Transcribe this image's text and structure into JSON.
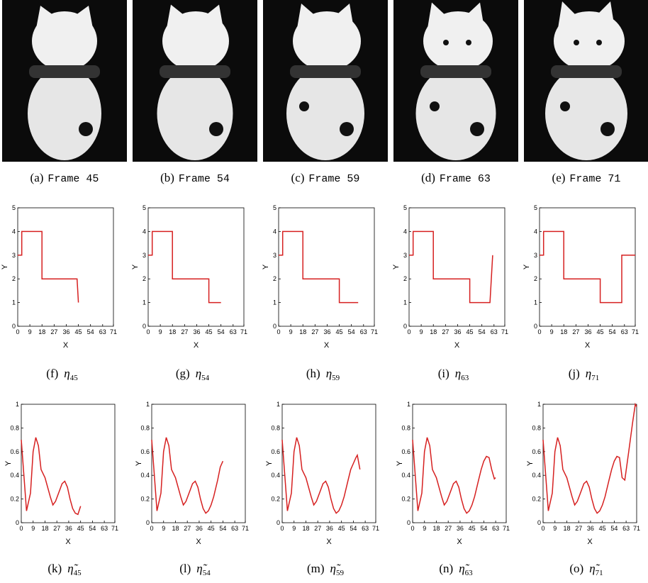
{
  "images": [
    {
      "label": "(a)",
      "text": "Frame 45"
    },
    {
      "label": "(b)",
      "text": "Frame 54"
    },
    {
      "label": "(c)",
      "text": "Frame 59"
    },
    {
      "label": "(d)",
      "text": "Frame 63"
    },
    {
      "label": "(e)",
      "text": "Frame 71"
    }
  ],
  "chart_data": [
    {
      "type": "line",
      "caption_label": "(f)",
      "caption_symbol": "η",
      "caption_sub": "45",
      "xlabel": "X",
      "ylabel": "Y",
      "xlim": [
        0,
        71
      ],
      "ylim": [
        0,
        5
      ],
      "xticks": [
        0,
        9,
        18,
        27,
        36,
        45,
        54,
        63,
        71
      ],
      "yticks": [
        0,
        1,
        2,
        3,
        4,
        5
      ],
      "color": "#d62020",
      "x": [
        0,
        3,
        3,
        18,
        18,
        44,
        45
      ],
      "values": [
        3,
        3,
        4,
        4,
        2,
        2,
        1
      ]
    },
    {
      "type": "line",
      "caption_label": "(g)",
      "caption_symbol": "η",
      "caption_sub": "54",
      "xlabel": "X",
      "ylabel": "Y",
      "xlim": [
        0,
        71
      ],
      "ylim": [
        0,
        5
      ],
      "xticks": [
        0,
        9,
        18,
        27,
        36,
        45,
        54,
        63,
        71
      ],
      "yticks": [
        0,
        1,
        2,
        3,
        4,
        5
      ],
      "color": "#d62020",
      "x": [
        0,
        3,
        3,
        18,
        18,
        45,
        45,
        54
      ],
      "values": [
        3,
        3,
        4,
        4,
        2,
        2,
        1,
        1
      ]
    },
    {
      "type": "line",
      "caption_label": "(h)",
      "caption_symbol": "η",
      "caption_sub": "59",
      "xlabel": "X",
      "ylabel": "Y",
      "xlim": [
        0,
        71
      ],
      "ylim": [
        0,
        5
      ],
      "xticks": [
        0,
        9,
        18,
        27,
        36,
        45,
        54,
        63,
        71
      ],
      "yticks": [
        0,
        1,
        2,
        3,
        4,
        5
      ],
      "color": "#d62020",
      "x": [
        0,
        3,
        3,
        18,
        18,
        45,
        45,
        59
      ],
      "values": [
        3,
        3,
        4,
        4,
        2,
        2,
        1,
        1
      ]
    },
    {
      "type": "line",
      "caption_label": "(i)",
      "caption_symbol": "η",
      "caption_sub": "63",
      "xlabel": "X",
      "ylabel": "Y",
      "xlim": [
        0,
        71
      ],
      "ylim": [
        0,
        5
      ],
      "xticks": [
        0,
        9,
        18,
        27,
        36,
        45,
        54,
        63,
        71
      ],
      "yticks": [
        0,
        1,
        2,
        3,
        4,
        5
      ],
      "color": "#d62020",
      "x": [
        0,
        3,
        3,
        18,
        18,
        45,
        45,
        60,
        62
      ],
      "values": [
        3,
        3,
        4,
        4,
        2,
        2,
        1,
        1,
        3
      ]
    },
    {
      "type": "line",
      "caption_label": "(j)",
      "caption_symbol": "η",
      "caption_sub": "71",
      "xlabel": "X",
      "ylabel": "Y",
      "xlim": [
        0,
        71
      ],
      "ylim": [
        0,
        5
      ],
      "xticks": [
        0,
        9,
        18,
        27,
        36,
        45,
        54,
        63,
        71
      ],
      "yticks": [
        0,
        1,
        2,
        3,
        4,
        5
      ],
      "color": "#d62020",
      "x": [
        0,
        3,
        3,
        18,
        18,
        45,
        45,
        61,
        61,
        71
      ],
      "values": [
        3,
        3,
        4,
        4,
        2,
        2,
        1,
        1,
        3,
        3
      ]
    },
    {
      "type": "line",
      "caption_label": "(k)",
      "caption_symbol": "η̃",
      "caption_sub": "45",
      "xlabel": "X",
      "ylabel": "Y",
      "xlim": [
        0,
        71
      ],
      "ylim": [
        0,
        1
      ],
      "xticks": [
        0,
        9,
        18,
        27,
        36,
        45,
        54,
        63,
        71
      ],
      "yticks": [
        0,
        0.2,
        0.4,
        0.6,
        0.8,
        1
      ],
      "color": "#d62020",
      "x": [
        0,
        2,
        4,
        7,
        9,
        11,
        13,
        15,
        18,
        20,
        22,
        24,
        26,
        29,
        31,
        33,
        35,
        37,
        39,
        41,
        43,
        45
      ],
      "values": [
        0.7,
        0.4,
        0.1,
        0.25,
        0.6,
        0.72,
        0.65,
        0.45,
        0.38,
        0.3,
        0.22,
        0.15,
        0.18,
        0.27,
        0.33,
        0.35,
        0.3,
        0.2,
        0.12,
        0.08,
        0.07,
        0.14
      ]
    },
    {
      "type": "line",
      "caption_label": "(l)",
      "caption_symbol": "η̃",
      "caption_sub": "54",
      "xlabel": "X",
      "ylabel": "Y",
      "xlim": [
        0,
        71
      ],
      "ylim": [
        0,
        1
      ],
      "xticks": [
        0,
        9,
        18,
        27,
        36,
        45,
        54,
        63,
        71
      ],
      "yticks": [
        0,
        0.2,
        0.4,
        0.6,
        0.8,
        1
      ],
      "color": "#d62020",
      "x": [
        0,
        2,
        4,
        7,
        9,
        11,
        13,
        15,
        18,
        20,
        22,
        24,
        26,
        29,
        31,
        33,
        35,
        37,
        39,
        41,
        43,
        45,
        47,
        50,
        52,
        54
      ],
      "values": [
        0.7,
        0.4,
        0.1,
        0.25,
        0.6,
        0.72,
        0.65,
        0.45,
        0.38,
        0.3,
        0.22,
        0.15,
        0.18,
        0.27,
        0.33,
        0.35,
        0.3,
        0.2,
        0.12,
        0.08,
        0.1,
        0.15,
        0.22,
        0.36,
        0.47,
        0.52
      ]
    },
    {
      "type": "line",
      "caption_label": "(m)",
      "caption_symbol": "η̃",
      "caption_sub": "59",
      "xlabel": "X",
      "ylabel": "Y",
      "xlim": [
        0,
        71
      ],
      "ylim": [
        0,
        1
      ],
      "xticks": [
        0,
        9,
        18,
        27,
        36,
        45,
        54,
        63,
        71
      ],
      "yticks": [
        0,
        0.2,
        0.4,
        0.6,
        0.8,
        1
      ],
      "color": "#d62020",
      "x": [
        0,
        2,
        4,
        7,
        9,
        11,
        13,
        15,
        18,
        20,
        22,
        24,
        26,
        29,
        31,
        33,
        35,
        37,
        39,
        41,
        43,
        45,
        47,
        50,
        52,
        54,
        56,
        57,
        59
      ],
      "values": [
        0.7,
        0.4,
        0.1,
        0.25,
        0.6,
        0.72,
        0.65,
        0.45,
        0.38,
        0.3,
        0.22,
        0.15,
        0.18,
        0.27,
        0.33,
        0.35,
        0.3,
        0.2,
        0.12,
        0.08,
        0.1,
        0.15,
        0.22,
        0.36,
        0.45,
        0.5,
        0.55,
        0.57,
        0.45
      ]
    },
    {
      "type": "line",
      "caption_label": "(n)",
      "caption_symbol": "η̃",
      "caption_sub": "63",
      "xlabel": "X",
      "ylabel": "Y",
      "xlim": [
        0,
        71
      ],
      "ylim": [
        0,
        1
      ],
      "xticks": [
        0,
        9,
        18,
        27,
        36,
        45,
        54,
        63,
        71
      ],
      "yticks": [
        0,
        0.2,
        0.4,
        0.6,
        0.8,
        1
      ],
      "color": "#d62020",
      "x": [
        0,
        2,
        4,
        7,
        9,
        11,
        13,
        15,
        18,
        20,
        22,
        24,
        26,
        29,
        31,
        33,
        35,
        37,
        39,
        41,
        43,
        45,
        47,
        50,
        52,
        54,
        56,
        58,
        60,
        62,
        63
      ],
      "values": [
        0.7,
        0.4,
        0.1,
        0.25,
        0.6,
        0.72,
        0.65,
        0.45,
        0.38,
        0.3,
        0.22,
        0.15,
        0.18,
        0.27,
        0.33,
        0.35,
        0.3,
        0.2,
        0.12,
        0.08,
        0.1,
        0.15,
        0.22,
        0.36,
        0.45,
        0.52,
        0.56,
        0.55,
        0.45,
        0.37,
        0.38
      ]
    },
    {
      "type": "line",
      "caption_label": "(o)",
      "caption_symbol": "η̃",
      "caption_sub": "71",
      "xlabel": "X",
      "ylabel": "Y",
      "xlim": [
        0,
        71
      ],
      "ylim": [
        0,
        1
      ],
      "xticks": [
        0,
        9,
        18,
        27,
        36,
        45,
        54,
        63,
        71
      ],
      "yticks": [
        0,
        0.2,
        0.4,
        0.6,
        0.8,
        1
      ],
      "color": "#d62020",
      "x": [
        0,
        2,
        4,
        7,
        9,
        11,
        13,
        15,
        18,
        20,
        22,
        24,
        26,
        29,
        31,
        33,
        35,
        37,
        39,
        41,
        43,
        45,
        47,
        50,
        52,
        54,
        56,
        58,
        60,
        62,
        65,
        68,
        70,
        71
      ],
      "values": [
        0.7,
        0.4,
        0.1,
        0.25,
        0.6,
        0.72,
        0.65,
        0.45,
        0.38,
        0.3,
        0.22,
        0.15,
        0.18,
        0.27,
        0.33,
        0.35,
        0.3,
        0.2,
        0.12,
        0.08,
        0.1,
        0.15,
        0.22,
        0.36,
        0.45,
        0.52,
        0.56,
        0.55,
        0.38,
        0.36,
        0.6,
        0.85,
        1,
        0.98
      ]
    }
  ]
}
